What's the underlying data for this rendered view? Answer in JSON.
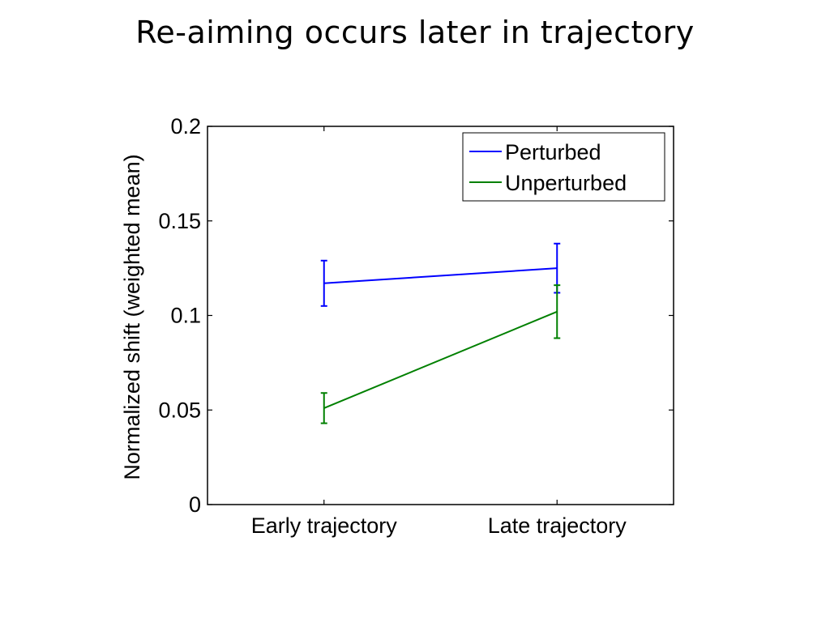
{
  "slide": {
    "title": "Re-aiming occurs later in trajectory"
  },
  "chart_data": {
    "type": "line",
    "title": "",
    "xlabel": "",
    "ylabel": "Normalized shift (weighted mean)",
    "categories": [
      "Early trajectory",
      "Late trajectory"
    ],
    "ylim": [
      0,
      0.2
    ],
    "yticks": [
      0,
      0.05,
      0.1,
      0.15,
      0.2
    ],
    "ytick_labels": [
      "0",
      "0.05",
      "0.1",
      "0.15",
      "0.2"
    ],
    "grid": false,
    "legend_position": "top-right",
    "series": [
      {
        "name": "Perturbed",
        "color": "#0000ff",
        "values": [
          0.117,
          0.125
        ],
        "error": [
          0.012,
          0.013
        ]
      },
      {
        "name": "Unperturbed",
        "color": "#008000",
        "values": [
          0.051,
          0.102
        ],
        "error": [
          0.008,
          0.014
        ]
      }
    ]
  }
}
